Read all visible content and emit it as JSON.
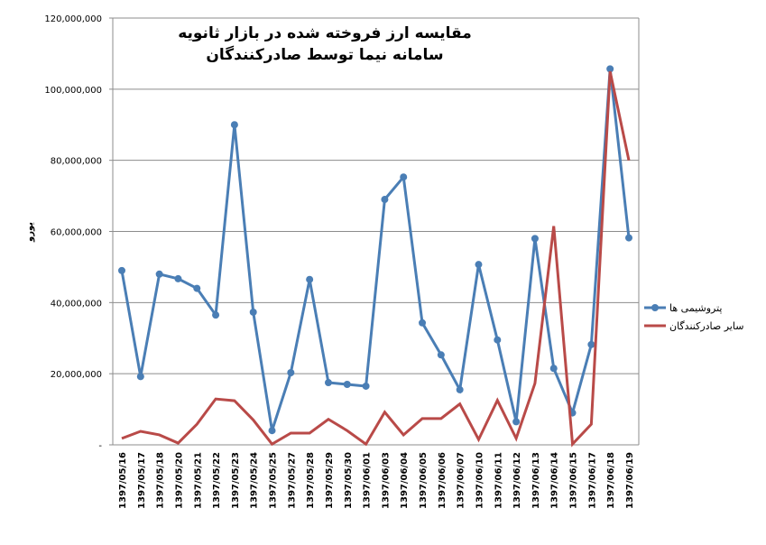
{
  "chart_data": {
    "type": "line",
    "title": [
      "مقایسه ارز فروخته شده در بازار ثانویه",
      "سامانه نیما توسط صادرکنندگان"
    ],
    "y_label": "یورو",
    "categories": [
      "1397/05/16",
      "1397/05/17",
      "1397/05/18",
      "1397/05/20",
      "1397/05/21",
      "1397/05/22",
      "1397/05/23",
      "1397/05/24",
      "1397/05/25",
      "1397/05/27",
      "1397/05/28",
      "1397/05/29",
      "1397/05/30",
      "1397/06/01",
      "1397/06/03",
      "1397/06/04",
      "1397/06/05",
      "1397/06/06",
      "1397/06/07",
      "1397/06/10",
      "1397/06/11",
      "1397/06/12",
      "1397/06/13",
      "1397/06/14",
      "1397/06/15",
      "1397/06/17",
      "1397/06/18",
      "1397/06/19"
    ],
    "series": [
      {
        "name": "پتروشیمی ها",
        "color": "#4a7eb5",
        "values": [
          49000000,
          19200000,
          48000000,
          46700000,
          44000000,
          36500000,
          90000000,
          37300000,
          4000000,
          20300000,
          46500000,
          17500000,
          17000000,
          16500000,
          69000000,
          75300000,
          34300000,
          25300000,
          15500000,
          50700000,
          29500000,
          6500000,
          58000000,
          21500000,
          9000000,
          28200000,
          105700000,
          58200000
        ]
      },
      {
        "name": "سایر صادرکنندگان",
        "color": "#b94a48",
        "values": [
          1800000,
          3800000,
          2800000,
          500000,
          5800000,
          12900000,
          12400000,
          7000000,
          200000,
          3300000,
          3300000,
          7200000,
          4000000,
          200000,
          9200000,
          2800000,
          7400000,
          7400000,
          11500000,
          1500000,
          12500000,
          1800000,
          17300000,
          61500000,
          200000,
          5800000,
          105000000,
          80000000
        ]
      }
    ],
    "ylim": [
      0,
      120000000
    ],
    "yticks": [
      {
        "value": 0,
        "label": "-"
      },
      {
        "value": 20000000,
        "label": "20,000,000"
      },
      {
        "value": 40000000,
        "label": "40,000,000"
      },
      {
        "value": 60000000,
        "label": "60,000,000"
      },
      {
        "value": 80000000,
        "label": "80,000,000"
      },
      {
        "value": 100000000,
        "label": "100,000,000"
      },
      {
        "value": 120000000,
        "label": "120,000,000"
      }
    ],
    "grid": true
  }
}
